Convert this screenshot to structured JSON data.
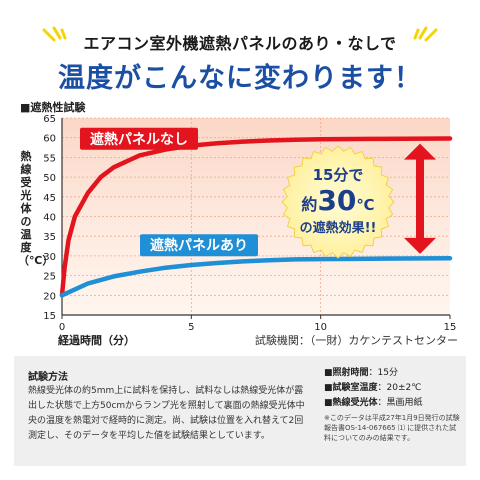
{
  "header": {
    "subtitle": "エアコン室外機遮熱パネルのあり・なしで",
    "title": "温度がこんなに変わります！",
    "accent_color": "#f5d400",
    "title_color": "#1b4fa3"
  },
  "section_label": "■遮熱性試験",
  "chart_data": {
    "type": "line",
    "xlabel": "経過時間（分）",
    "ylabel": "熱線受光体の温度（℃）",
    "xlim": [
      0,
      15
    ],
    "ylim": [
      15,
      65
    ],
    "xticks": [
      0,
      5,
      10,
      15
    ],
    "yticks": [
      15,
      20,
      25,
      30,
      35,
      40,
      45,
      50,
      55,
      60,
      65
    ],
    "grid": true,
    "series": [
      {
        "name": "遮熱パネルなし",
        "color": "#e3141e",
        "x": [
          0,
          0.1,
          0.25,
          0.5,
          1,
          1.5,
          2,
          3,
          4,
          5,
          6,
          7,
          8,
          9,
          10,
          12,
          15
        ],
        "y": [
          20,
          27,
          34,
          40,
          46,
          50,
          52.5,
          55.5,
          57,
          58,
          58.6,
          59,
          59.3,
          59.5,
          59.6,
          59.7,
          59.8
        ]
      },
      {
        "name": "遮熱パネルあり",
        "color": "#1f8fd6",
        "x": [
          0,
          0.5,
          1,
          2,
          3,
          4,
          5,
          6,
          7,
          8,
          9,
          10,
          12,
          15
        ],
        "y": [
          20,
          21.5,
          23,
          24.8,
          26,
          27,
          27.7,
          28.2,
          28.6,
          28.9,
          29.1,
          29.2,
          29.3,
          29.4
        ]
      }
    ],
    "annotation": {
      "line1": "15分で",
      "line2_prefix": "約",
      "line2_value": "30",
      "line2_unit": "℃",
      "line3": "の遮熱効果!!",
      "badge_color": "#fff6b3",
      "arrow_color": "#e3141e"
    }
  },
  "source": "試験機関：（一財）カケンテストセンター",
  "method": {
    "title": "試験方法",
    "text": "熱線受光体の約5mm上に試料を保持し、試料なしは熱線受光体が露出した状態で上方50cmからランプ光を照射して裏面の熱線受光体中央の温度を熱電対で経時的に測定。尚、試験は位置を入れ替えて2回測定し、そのデータを平均した値を試験結果としています。"
  },
  "conditions": [
    {
      "label": "■照射時間",
      "value": "：15分"
    },
    {
      "label": "■試験室温度",
      "value": "：20±2℃"
    },
    {
      "label": "■熱線受光体",
      "value": "：黒画用紙"
    }
  ],
  "note": "※このデータは平成27年1月9日発行の試験報告書OS-14-067665 ⑴ に提供された試料についてのみの結果です。"
}
